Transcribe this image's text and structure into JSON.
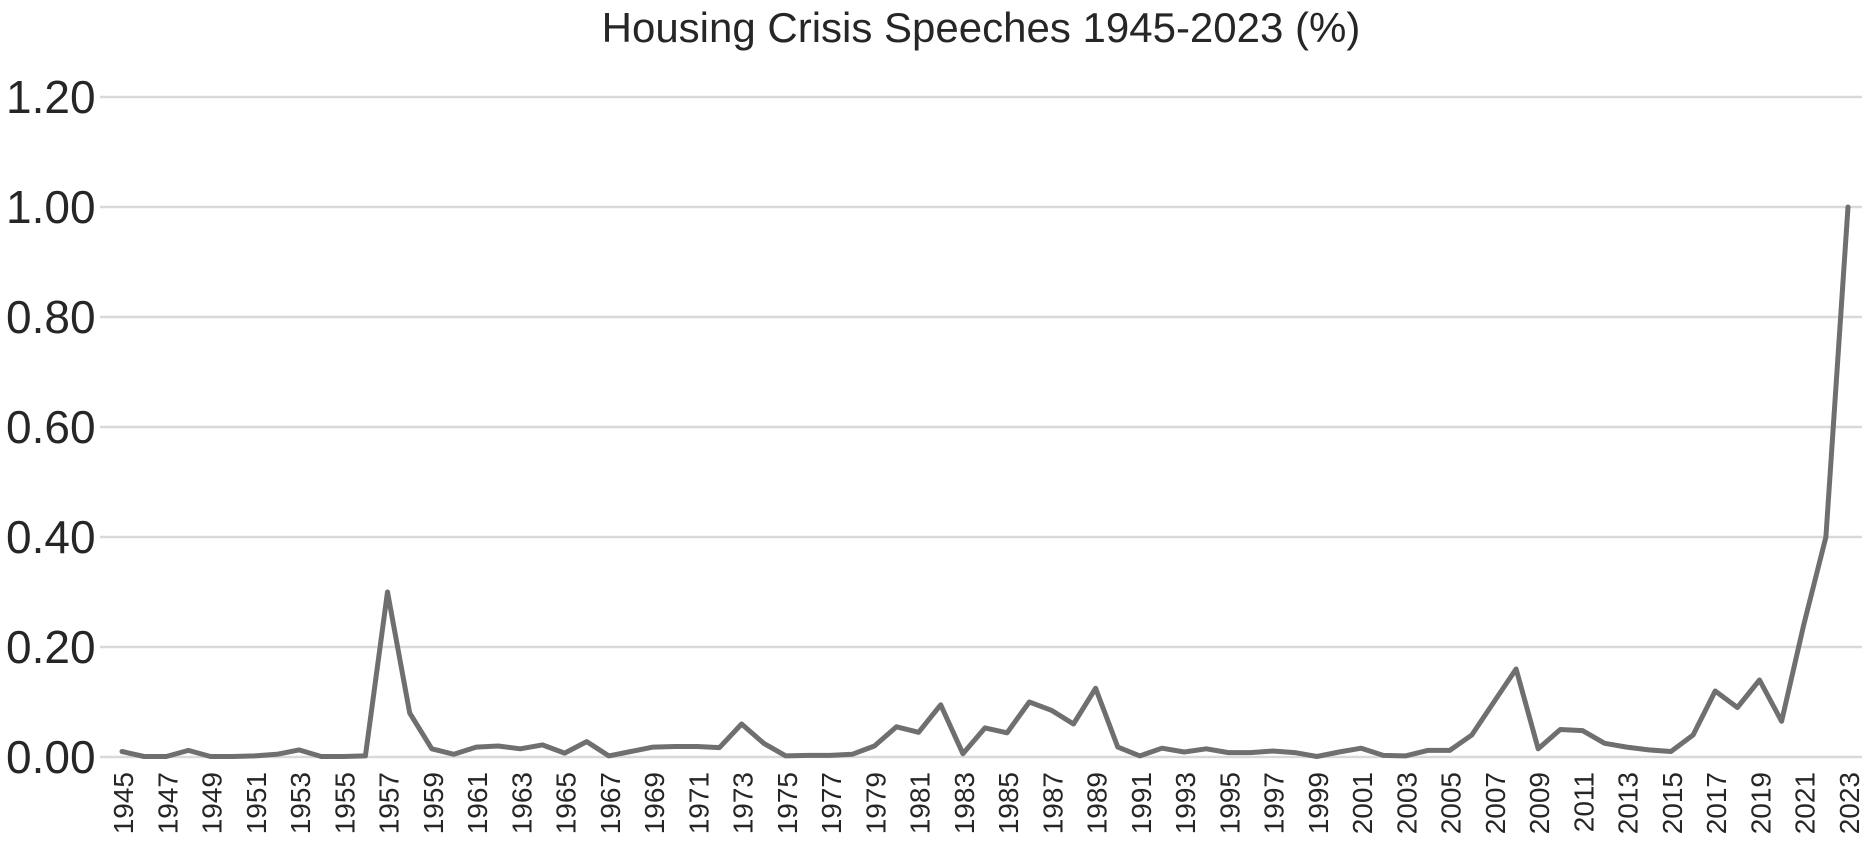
{
  "chart_data": {
    "type": "line",
    "title": "Housing Crisis Speeches 1945-2023 (%)",
    "xlabel": "",
    "ylabel": "",
    "ylim": [
      0,
      1.2
    ],
    "grid": true,
    "legend_position": "none",
    "y_tick_labels": [
      "0.00",
      "0.20",
      "0.40",
      "0.60",
      "0.80",
      "1.00",
      "1.20"
    ],
    "x_tick_labels": [
      "1945",
      "1947",
      "1949",
      "1951",
      "1953",
      "1955",
      "1957",
      "1959",
      "1961",
      "1963",
      "1965",
      "1967",
      "1969",
      "1971",
      "1973",
      "1975",
      "1977",
      "1979",
      "1981",
      "1983",
      "1985",
      "1987",
      "1989",
      "1991",
      "1993",
      "1995",
      "1997",
      "1999",
      "2001",
      "2003",
      "2005",
      "2007",
      "2009",
      "2011",
      "2013",
      "2015",
      "2017",
      "2019",
      "2021",
      "2023"
    ],
    "x": [
      1945,
      1946,
      1947,
      1948,
      1949,
      1950,
      1951,
      1952,
      1953,
      1954,
      1955,
      1956,
      1957,
      1958,
      1959,
      1960,
      1961,
      1962,
      1963,
      1964,
      1965,
      1966,
      1967,
      1968,
      1969,
      1970,
      1971,
      1972,
      1973,
      1974,
      1975,
      1976,
      1977,
      1978,
      1979,
      1980,
      1981,
      1982,
      1983,
      1984,
      1985,
      1986,
      1987,
      1988,
      1989,
      1990,
      1991,
      1992,
      1993,
      1994,
      1995,
      1996,
      1997,
      1998,
      1999,
      2000,
      2001,
      2002,
      2003,
      2004,
      2005,
      2006,
      2007,
      2008,
      2009,
      2010,
      2011,
      2012,
      2013,
      2014,
      2015,
      2016,
      2017,
      2018,
      2019,
      2020,
      2021,
      2022,
      2023
    ],
    "values": [
      0.01,
      0.001,
      0.001,
      0.012,
      0.001,
      0.001,
      0.002,
      0.005,
      0.013,
      0.001,
      0.001,
      0.002,
      0.3,
      0.08,
      0.015,
      0.005,
      0.018,
      0.02,
      0.015,
      0.022,
      0.007,
      0.028,
      0.002,
      0.01,
      0.018,
      0.019,
      0.019,
      0.017,
      0.06,
      0.025,
      0.002,
      0.003,
      0.003,
      0.005,
      0.02,
      0.055,
      0.045,
      0.095,
      0.006,
      0.053,
      0.044,
      0.1,
      0.085,
      0.06,
      0.125,
      0.018,
      0.002,
      0.016,
      0.009,
      0.015,
      0.008,
      0.008,
      0.011,
      0.008,
      0.001,
      0.009,
      0.016,
      0.003,
      0.002,
      0.012,
      0.012,
      0.04,
      0.1,
      0.16,
      0.015,
      0.05,
      0.048,
      0.025,
      0.018,
      0.013,
      0.01,
      0.04,
      0.12,
      0.09,
      0.14,
      0.065,
      0.24,
      0.4,
      1.0
    ],
    "colors": {
      "line": "#6f6f6f",
      "gridline": "#d9d9d9",
      "tick_label": "#262626",
      "title": "#262626",
      "background": "#ffffff"
    }
  }
}
